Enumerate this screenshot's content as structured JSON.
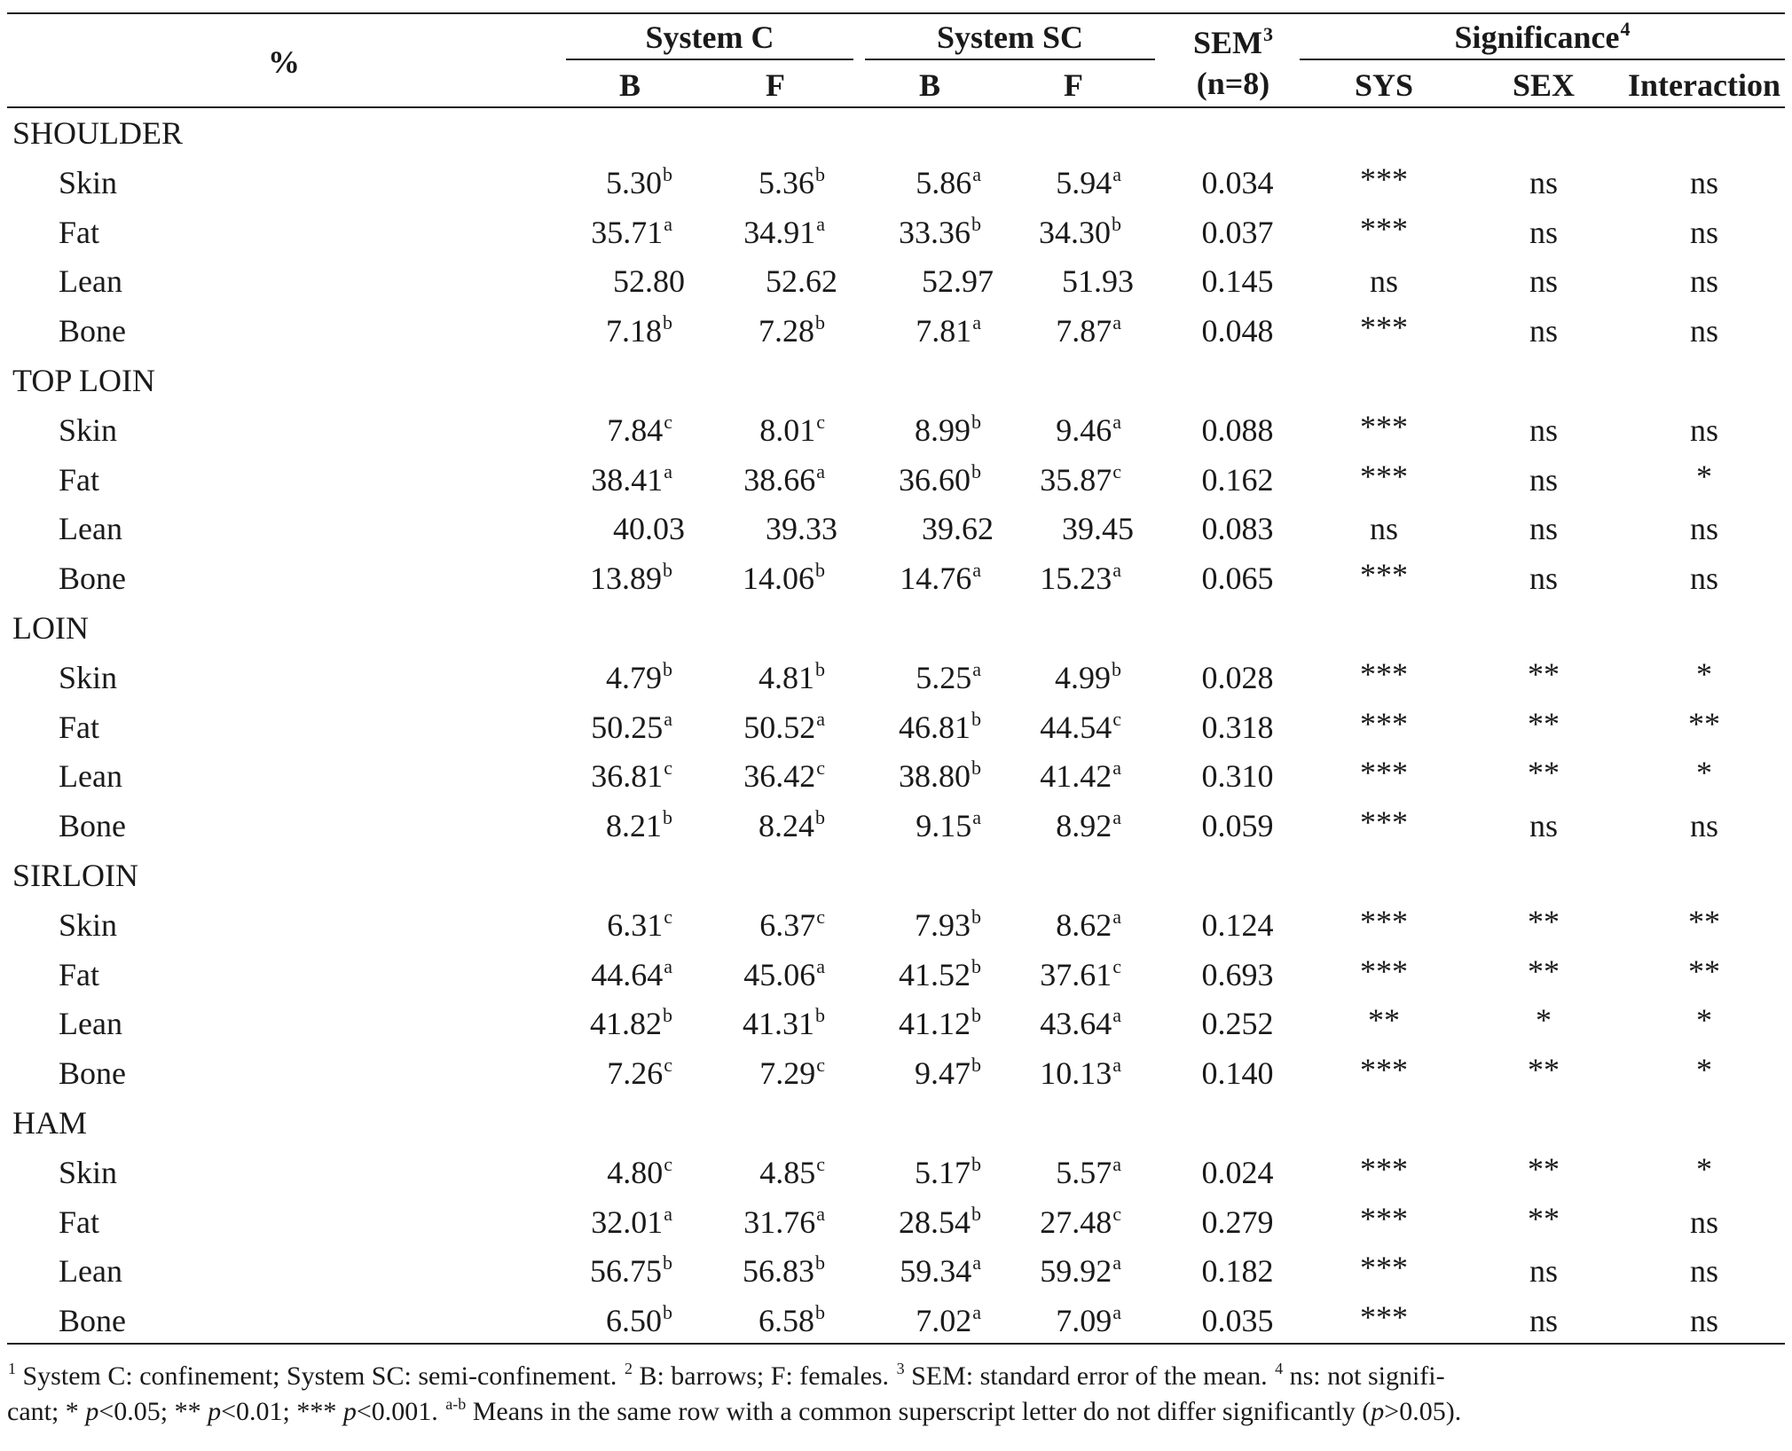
{
  "header": {
    "corner": "%",
    "group_c": "System C",
    "group_sc": "System SC",
    "sem_title": "SEM",
    "sem_sup": "3",
    "sem_sub": "(n=8)",
    "sig_title": "Significance",
    "sig_sup": "4",
    "b1": "B",
    "f1": "F",
    "b2": "B",
    "f2": "F",
    "sys": "SYS",
    "sex": "SEX",
    "interaction": "Interaction"
  },
  "sections": [
    {
      "name": "SHOULDER",
      "rows": [
        {
          "label": "Skin",
          "cb": "5.30",
          "cbs": "b",
          "cf": "5.36",
          "cfs": "b",
          "sb": "5.86",
          "sbs": "a",
          "sf": "5.94",
          "sfs": "a",
          "sem": "0.034",
          "sys": "***",
          "sex": "ns",
          "int": "ns"
        },
        {
          "label": "Fat",
          "cb": "35.71",
          "cbs": "a",
          "cf": "34.91",
          "cfs": "a",
          "sb": "33.36",
          "sbs": "b",
          "sf": "34.30",
          "sfs": "b",
          "sem": "0.037",
          "sys": "***",
          "sex": "ns",
          "int": "ns"
        },
        {
          "label": "Lean",
          "cb": "52.80",
          "cbs": "",
          "cf": "52.62",
          "cfs": "",
          "sb": "52.97",
          "sbs": "",
          "sf": "51.93",
          "sfs": "",
          "sem": "0.145",
          "sys": "ns",
          "sex": "ns",
          "int": "ns"
        },
        {
          "label": "Bone",
          "cb": "7.18",
          "cbs": "b",
          "cf": "7.28",
          "cfs": "b",
          "sb": "7.81",
          "sbs": "a",
          "sf": "7.87",
          "sfs": "a",
          "sem": "0.048",
          "sys": "***",
          "sex": "ns",
          "int": "ns"
        }
      ]
    },
    {
      "name": "TOP LOIN",
      "rows": [
        {
          "label": "Skin",
          "cb": "7.84",
          "cbs": "c",
          "cf": "8.01",
          "cfs": "c",
          "sb": "8.99",
          "sbs": "b",
          "sf": "9.46",
          "sfs": "a",
          "sem": "0.088",
          "sys": "***",
          "sex": "ns",
          "int": "ns"
        },
        {
          "label": "Fat",
          "cb": "38.41",
          "cbs": "a",
          "cf": "38.66",
          "cfs": "a",
          "sb": "36.60",
          "sbs": "b",
          "sf": "35.87",
          "sfs": "c",
          "sem": "0.162",
          "sys": "***",
          "sex": "ns",
          "int": "*"
        },
        {
          "label": "Lean",
          "cb": "40.03",
          "cbs": "",
          "cf": "39.33",
          "cfs": "",
          "sb": "39.62",
          "sbs": "",
          "sf": "39.45",
          "sfs": "",
          "sem": "0.083",
          "sys": "ns",
          "sex": "ns",
          "int": "ns"
        },
        {
          "label": "Bone",
          "cb": "13.89",
          "cbs": "b",
          "cf": "14.06",
          "cfs": "b",
          "sb": "14.76",
          "sbs": "a",
          "sf": "15.23",
          "sfs": "a",
          "sem": "0.065",
          "sys": "***",
          "sex": "ns",
          "int": "ns"
        }
      ]
    },
    {
      "name": "LOIN",
      "rows": [
        {
          "label": "Skin",
          "cb": "4.79",
          "cbs": "b",
          "cf": "4.81",
          "cfs": "b",
          "sb": "5.25",
          "sbs": "a",
          "sf": "4.99",
          "sfs": "b",
          "sem": "0.028",
          "sys": "***",
          "sex": "**",
          "int": "*"
        },
        {
          "label": "Fat",
          "cb": "50.25",
          "cbs": "a",
          "cf": "50.52",
          "cfs": "a",
          "sb": "46.81",
          "sbs": "b",
          "sf": "44.54",
          "sfs": "c",
          "sem": "0.318",
          "sys": "***",
          "sex": "**",
          "int": "**"
        },
        {
          "label": "Lean",
          "cb": "36.81",
          "cbs": "c",
          "cf": "36.42",
          "cfs": "c",
          "sb": "38.80",
          "sbs": "b",
          "sf": "41.42",
          "sfs": "a",
          "sem": "0.310",
          "sys": "***",
          "sex": "**",
          "int": "*"
        },
        {
          "label": "Bone",
          "cb": "8.21",
          "cbs": "b",
          "cf": "8.24",
          "cfs": "b",
          "sb": "9.15",
          "sbs": "a",
          "sf": "8.92",
          "sfs": "a",
          "sem": "0.059",
          "sys": "***",
          "sex": "ns",
          "int": "ns"
        }
      ]
    },
    {
      "name": "SIRLOIN",
      "rows": [
        {
          "label": "Skin",
          "cb": "6.31",
          "cbs": "c",
          "cf": "6.37",
          "cfs": "c",
          "sb": "7.93",
          "sbs": "b",
          "sf": "8.62",
          "sfs": "a",
          "sem": "0.124",
          "sys": "***",
          "sex": "**",
          "int": "**"
        },
        {
          "label": "Fat",
          "cb": "44.64",
          "cbs": "a",
          "cf": "45.06",
          "cfs": "a",
          "sb": "41.52",
          "sbs": "b",
          "sf": "37.61",
          "sfs": "c",
          "sem": "0.693",
          "sys": "***",
          "sex": "**",
          "int": "**"
        },
        {
          "label": "Lean",
          "cb": "41.82",
          "cbs": "b",
          "cf": "41.31",
          "cfs": "b",
          "sb": "41.12",
          "sbs": "b",
          "sf": "43.64",
          "sfs": "a",
          "sem": "0.252",
          "sys": "**",
          "sex": "*",
          "int": "*"
        },
        {
          "label": "Bone",
          "cb": "7.26",
          "cbs": "c",
          "cf": "7.29",
          "cfs": "c",
          "sb": "9.47",
          "sbs": "b",
          "sf": "10.13",
          "sfs": "a",
          "sem": "0.140",
          "sys": "***",
          "sex": "**",
          "int": "*"
        }
      ]
    },
    {
      "name": "HAM",
      "rows": [
        {
          "label": "Skin",
          "cb": "4.80",
          "cbs": "c",
          "cf": "4.85",
          "cfs": "c",
          "sb": "5.17",
          "sbs": "b",
          "sf": "5.57",
          "sfs": "a",
          "sem": "0.024",
          "sys": "***",
          "sex": "**",
          "int": "*"
        },
        {
          "label": "Fat",
          "cb": "32.01",
          "cbs": "a",
          "cf": "31.76",
          "cfs": "a",
          "sb": "28.54",
          "sbs": "b",
          "sf": "27.48",
          "sfs": "c",
          "sem": "0.279",
          "sys": "***",
          "sex": "**",
          "int": "ns"
        },
        {
          "label": "Lean",
          "cb": "56.75",
          "cbs": "b",
          "cf": "56.83",
          "cfs": "b",
          "sb": "59.34",
          "sbs": "a",
          "sf": "59.92",
          "sfs": "a",
          "sem": "0.182",
          "sys": "***",
          "sex": "ns",
          "int": "ns"
        },
        {
          "label": "Bone",
          "cb": "6.50",
          "cbs": "b",
          "cf": "6.58",
          "cfs": "b",
          "sb": "7.02",
          "sbs": "a",
          "sf": "7.09",
          "sfs": "a",
          "sem": "0.035",
          "sys": "***",
          "sex": "ns",
          "int": "ns"
        }
      ]
    }
  ],
  "footnote": {
    "line1": [
      {
        "t": "1",
        "sup": true
      },
      {
        "t": " System C: confinement; System SC: semi-confinement. "
      },
      {
        "t": "2",
        "sup": true
      },
      {
        "t": " B: barrows; F: females. "
      },
      {
        "t": "3",
        "sup": true
      },
      {
        "t": " SEM: standard error of the mean. "
      },
      {
        "t": "4",
        "sup": true
      },
      {
        "t": " ns: not signifi-"
      }
    ],
    "line2": [
      {
        "t": "cant; * "
      },
      {
        "t": "p",
        "it": true
      },
      {
        "t": "<0.05; ** "
      },
      {
        "t": "p",
        "it": true
      },
      {
        "t": "<0.01; *** "
      },
      {
        "t": "p",
        "it": true
      },
      {
        "t": "<0.001. "
      },
      {
        "t": "a-b",
        "sup": true
      },
      {
        "t": " Means in the same row with a common superscript letter do not differ significantly ("
      },
      {
        "t": "p",
        "it": true
      },
      {
        "t": ">0.05)."
      }
    ]
  }
}
